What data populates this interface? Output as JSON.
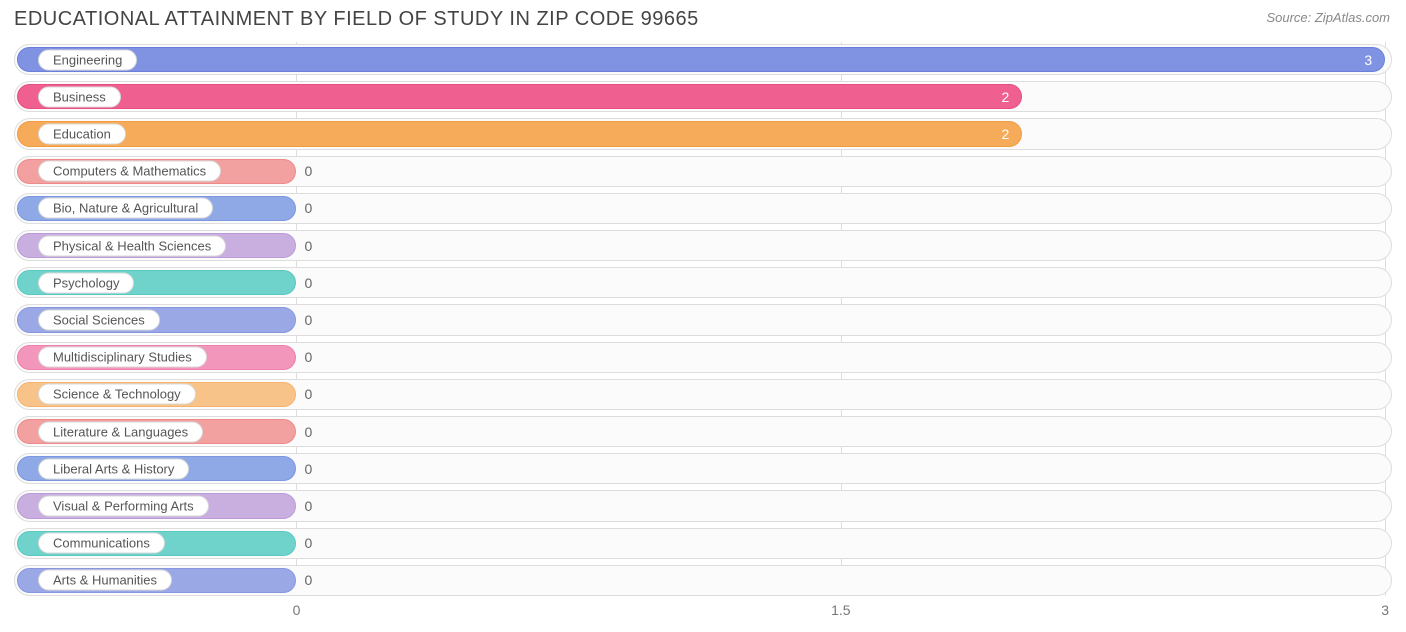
{
  "title": "EDUCATIONAL ATTAINMENT BY FIELD OF STUDY IN ZIP CODE 99665",
  "source": "Source: ZipAtlas.com",
  "chart": {
    "type": "bar-horizontal",
    "xmin": 0,
    "xmax": 3,
    "zero_bar_pct": 20.5,
    "ticks": [
      {
        "value": 0,
        "label": "0"
      },
      {
        "value": 1.5,
        "label": "1.5"
      },
      {
        "value": 3,
        "label": "3"
      }
    ],
    "track_border_color": "#dddddd",
    "track_bg_color": "#fbfbfb",
    "grid_color": "#dddddd",
    "label_fontsize": 13,
    "value_fontsize": 14,
    "series": [
      {
        "label": "Engineering",
        "value": 3,
        "color_fill": "#8093e3",
        "color_border": "#6a7fd9"
      },
      {
        "label": "Business",
        "value": 2,
        "color_fill": "#ef6091",
        "color_border": "#e94c82"
      },
      {
        "label": "Education",
        "value": 2,
        "color_fill": "#f6ab5b",
        "color_border": "#f29b3f"
      },
      {
        "label": "Computers & Mathematics",
        "value": 0,
        "color_fill": "#f3a0a0",
        "color_border": "#ee8a8a"
      },
      {
        "label": "Bio, Nature & Agricultural",
        "value": 0,
        "color_fill": "#8ea9e6",
        "color_border": "#7a97df"
      },
      {
        "label": "Physical & Health Sciences",
        "value": 0,
        "color_fill": "#c9aee0",
        "color_border": "#bb9cd8"
      },
      {
        "label": "Psychology",
        "value": 0,
        "color_fill": "#6fd3cc",
        "color_border": "#58c9c1"
      },
      {
        "label": "Social Sciences",
        "value": 0,
        "color_fill": "#9ba8e6",
        "color_border": "#8896df"
      },
      {
        "label": "Multidisciplinary Studies",
        "value": 0,
        "color_fill": "#f396bb",
        "color_border": "#ef7fab"
      },
      {
        "label": "Science & Technology",
        "value": 0,
        "color_fill": "#f8c389",
        "color_border": "#f5b36f"
      },
      {
        "label": "Literature & Languages",
        "value": 0,
        "color_fill": "#f3a0a0",
        "color_border": "#ee8a8a"
      },
      {
        "label": "Liberal Arts & History",
        "value": 0,
        "color_fill": "#8ea9e6",
        "color_border": "#7a97df"
      },
      {
        "label": "Visual & Performing Arts",
        "value": 0,
        "color_fill": "#c9aee0",
        "color_border": "#bb9cd8"
      },
      {
        "label": "Communications",
        "value": 0,
        "color_fill": "#6fd3cc",
        "color_border": "#58c9c1"
      },
      {
        "label": "Arts & Humanities",
        "value": 0,
        "color_fill": "#9ba8e6",
        "color_border": "#8896df"
      }
    ]
  }
}
